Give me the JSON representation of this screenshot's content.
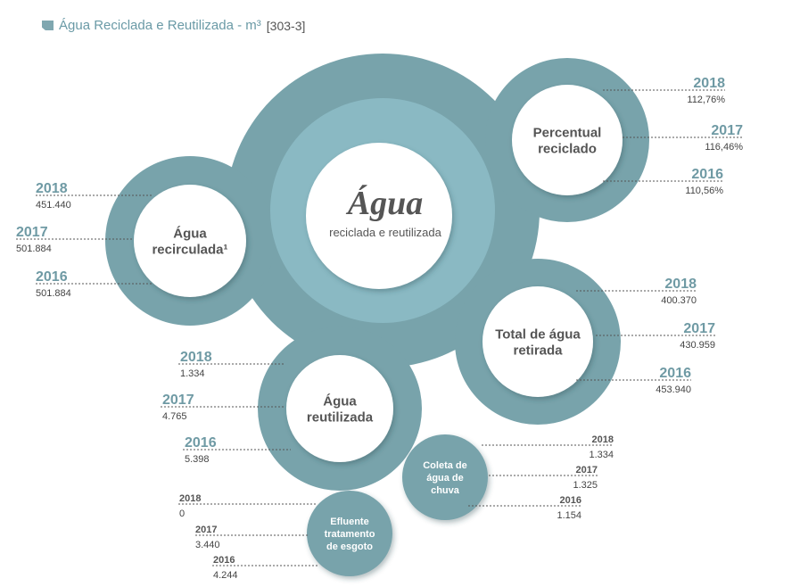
{
  "header": {
    "title": "Água Reciclada e Reutilizada - m³",
    "code": "[303-3]"
  },
  "colors": {
    "teal_dark": "#78a3ab",
    "teal_light": "#8ab9c3",
    "year_color": "#6f9aa4",
    "value_color": "#444444",
    "label_color": "#555555"
  },
  "center": {
    "title": "Água",
    "subtitle": "reciclada e reutilizada"
  },
  "nodes": [
    {
      "id": "percentual",
      "label_lines": [
        "Percentual",
        "reciclado"
      ],
      "entries": [
        {
          "year": "2018",
          "value": "112,76%"
        },
        {
          "year": "2017",
          "value": "116,46%"
        },
        {
          "year": "2016",
          "value": "110,56%"
        }
      ]
    },
    {
      "id": "recirculada",
      "label_lines": [
        "Água",
        "recirculada¹"
      ],
      "entries": [
        {
          "year": "2018",
          "value": "451.440"
        },
        {
          "year": "2017",
          "value": "501.884"
        },
        {
          "year": "2016",
          "value": "501.884"
        }
      ]
    },
    {
      "id": "retirada",
      "label_lines": [
        "Total de água",
        "retirada"
      ],
      "entries": [
        {
          "year": "2018",
          "value": "400.370"
        },
        {
          "year": "2017",
          "value": "430.959"
        },
        {
          "year": "2016",
          "value": "453.940"
        }
      ]
    },
    {
      "id": "reutilizada",
      "label_lines": [
        "Água",
        "reutilizada"
      ],
      "entries": [
        {
          "year": "2018",
          "value": "1.334"
        },
        {
          "year": "2017",
          "value": "4.765"
        },
        {
          "year": "2016",
          "value": "5.398"
        }
      ]
    },
    {
      "id": "chuva",
      "label_lines": [
        "Coleta de",
        "água  de",
        "chuva"
      ],
      "entries": [
        {
          "year": "2018",
          "value": "1.334"
        },
        {
          "year": "2017",
          "value": "1.325"
        },
        {
          "year": "2016",
          "value": "1.154"
        }
      ]
    },
    {
      "id": "efluente",
      "label_lines": [
        "Efluente",
        "tratamento",
        "de esgoto"
      ],
      "entries": [
        {
          "year": "2018",
          "value": "0"
        },
        {
          "year": "2017",
          "value": "3.440"
        },
        {
          "year": "2016",
          "value": "4.244"
        }
      ]
    }
  ]
}
